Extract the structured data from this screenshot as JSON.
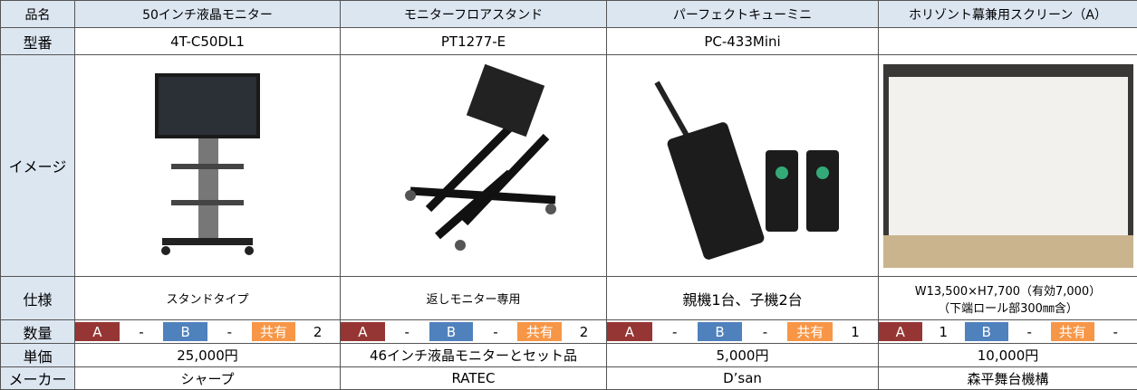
{
  "header": [
    "品名",
    "50インチ液晶モニター",
    "モニターフロアスタンド",
    "パーフェクトキューミニ",
    "ホリゾント幕兼用スクリーン（A）"
  ],
  "model": {
    "label": "型番",
    "cells": [
      "4T-C50DL1",
      "PT1277-E",
      "PC-433Mini"
    ]
  },
  "image": {
    "label": "イメージ"
  },
  "spec": {
    "label": "仕様",
    "cells": [
      [
        "スタンドタイプ"
      ],
      [
        "返しモニター専用"
      ],
      [
        "親機1台、子機2台"
      ],
      [
        "W13,500×H7,700（有効7,000）",
        "（下端ロール部300㎜含）"
      ]
    ]
  },
  "quantity": {
    "label": "数量",
    "tags": [
      "A",
      "B",
      "共有"
    ],
    "cells": [
      [
        "-",
        "-",
        "2"
      ],
      [
        "-",
        "-",
        "2"
      ],
      [
        "-",
        "-",
        "1"
      ],
      [
        "1",
        "-",
        "-"
      ]
    ]
  },
  "price": {
    "label": "単価",
    "cells": [
      "25,000円",
      "46インチ液晶モニターとセット品",
      "5,000円",
      "10,000円"
    ]
  },
  "maker": {
    "label": "メーカー",
    "cells": [
      "シャープ",
      "RATEC",
      "D’san",
      "森平舞台機構"
    ]
  }
}
